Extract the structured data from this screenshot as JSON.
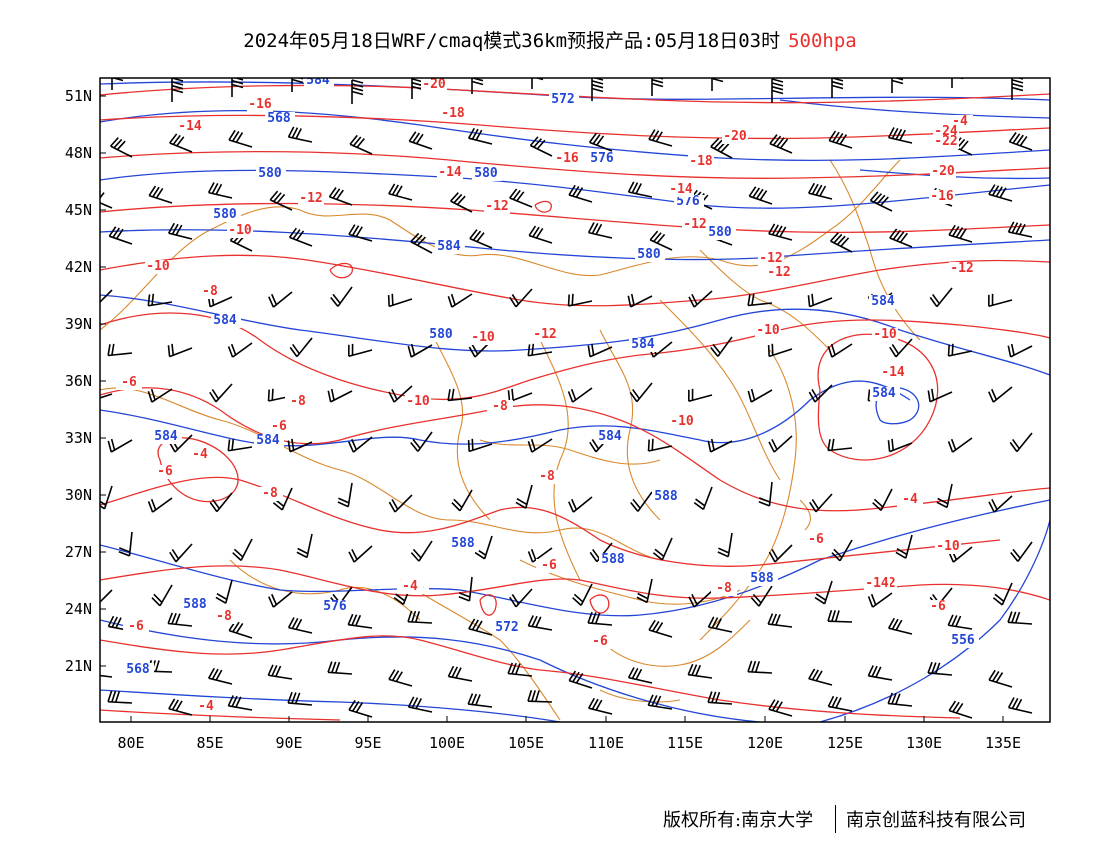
{
  "title": {
    "main": "2024年05月18日WRF/cmaq模式36km预报产品:05月18日03时",
    "level": "500hpa"
  },
  "map": {
    "lat_labels": [
      "51N",
      "48N",
      "45N",
      "42N",
      "39N",
      "36N",
      "33N",
      "30N",
      "27N",
      "24N",
      "21N"
    ],
    "lon_labels": [
      "80E",
      "85E",
      "90E",
      "95E",
      "100E",
      "105E",
      "110E",
      "115E",
      "120E",
      "125E",
      "130E",
      "135E"
    ],
    "colors": {
      "height_contour": "#2346d6",
      "temp_contour": "#e8312e",
      "boundary": "#d9892e",
      "wind_barb": "#000000",
      "frame": "#000000"
    },
    "blue_labels": [
      "584",
      "572",
      "568",
      "576",
      "580",
      "580",
      "580",
      "576",
      "580",
      "584",
      "580",
      "584",
      "584",
      "580",
      "584",
      "584",
      "584",
      "584",
      "584",
      "588",
      "588",
      "588",
      "588",
      "588",
      "576",
      "572",
      "568",
      "556"
    ],
    "red_labels": [
      "-16",
      "-14",
      "-20",
      "-18",
      "-16",
      "-18",
      "-20",
      "-14",
      "-12",
      "-12",
      "-12",
      "-14",
      "-10",
      "-10",
      "-8",
      "-10",
      "-12",
      "-12",
      "-12",
      "-12",
      "-10",
      "-10",
      "-10",
      "-14",
      "-8",
      "-10",
      "-6",
      "-8",
      "-4",
      "-6",
      "-6",
      "-8",
      "-8",
      "-4",
      "-6",
      "-12",
      "-10",
      "-6",
      "-8",
      "-4",
      "-6",
      "-8",
      "-6",
      "-6",
      "-4",
      "-4",
      "-24",
      "-22",
      "-20",
      "-16",
      "-14",
      "-6",
      "-4"
    ]
  },
  "footer": {
    "left": "版权所有:南京大学",
    "right": "南京创蓝科技有限公司"
  }
}
